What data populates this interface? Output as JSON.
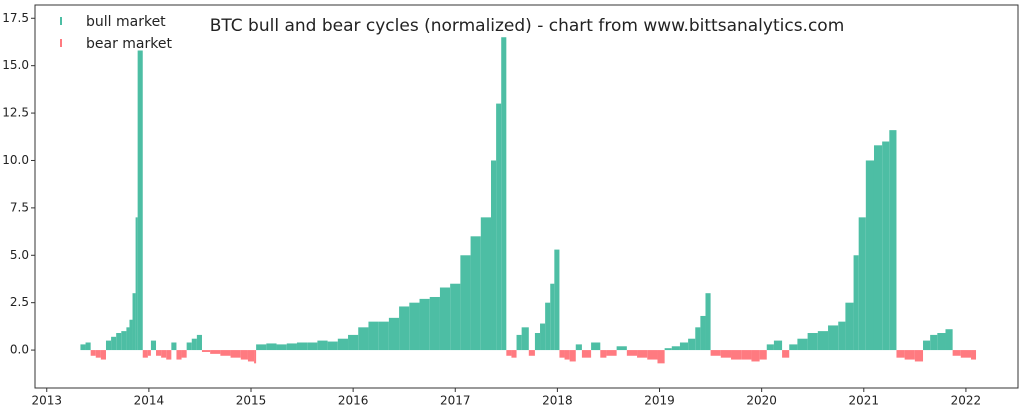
{
  "chart_data": {
    "type": "bar",
    "title": "BTC bull and bear cycles (normalized)  - chart from www.bittsanalytics.com",
    "legend": "upper left",
    "xlim": [
      2012.885,
      2022.51
    ],
    "xticks": [
      2013,
      2014,
      2015,
      2016,
      2017,
      2018,
      2019,
      2020,
      2021,
      2022
    ],
    "ylim": [
      -2.0,
      18.2
    ],
    "yticks": [
      {
        "value": 0,
        "label": "0.0"
      },
      2.5,
      {
        "value": 5,
        "label": "5.0"
      },
      7.5,
      {
        "value": 10,
        "label": "10.0"
      },
      12.5,
      {
        "value": 15,
        "label": "15.0"
      },
      17.5
    ],
    "series": [
      {
        "name": "bull market",
        "color": "#4dbea4",
        "x": [
          2013.33,
          2013.38,
          2013.58,
          2013.63,
          2013.68,
          2013.73,
          2013.78,
          2013.81,
          2013.84,
          2013.87,
          2013.89,
          2014.02,
          2014.22,
          2014.37,
          2014.42,
          2014.47,
          2015.05,
          2015.15,
          2015.25,
          2015.35,
          2015.45,
          2015.55,
          2015.65,
          2015.75,
          2015.85,
          2015.95,
          2016.05,
          2016.15,
          2016.25,
          2016.35,
          2016.45,
          2016.55,
          2016.65,
          2016.75,
          2016.85,
          2016.95,
          2017.05,
          2017.15,
          2017.25,
          2017.35,
          2017.4,
          2017.45,
          2017.6,
          2017.65,
          2017.78,
          2017.83,
          2017.88,
          2017.93,
          2017.97,
          2018.18,
          2018.33,
          2018.58,
          2019.05,
          2019.12,
          2019.2,
          2019.28,
          2019.35,
          2019.4,
          2019.45,
          2020.05,
          2020.12,
          2020.27,
          2020.35,
          2020.45,
          2020.55,
          2020.65,
          2020.75,
          2020.82,
          2020.9,
          2020.95,
          2021.02,
          2021.1,
          2021.18,
          2021.25,
          2021.58,
          2021.65,
          2021.72,
          2021.8
        ],
        "values": [
          0.3,
          0.4,
          0.5,
          0.7,
          0.9,
          1.0,
          1.2,
          1.6,
          3.0,
          7.0,
          15.8,
          0.5,
          0.4,
          0.4,
          0.6,
          0.8,
          0.3,
          0.35,
          0.3,
          0.35,
          0.4,
          0.4,
          0.5,
          0.45,
          0.6,
          0.8,
          1.2,
          1.5,
          1.5,
          1.7,
          2.3,
          2.5,
          2.7,
          2.8,
          3.3,
          3.5,
          5.0,
          6.0,
          7.0,
          10.0,
          13.0,
          16.5,
          0.8,
          1.2,
          0.9,
          1.4,
          2.5,
          3.5,
          5.3,
          0.3,
          0.4,
          0.2,
          0.1,
          0.2,
          0.4,
          0.6,
          1.2,
          1.8,
          3.0,
          0.3,
          0.5,
          0.3,
          0.6,
          0.9,
          1.0,
          1.3,
          1.5,
          2.5,
          5.0,
          7.0,
          10.0,
          10.8,
          11.0,
          11.6,
          0.5,
          0.8,
          0.9,
          1.1
        ]
      },
      {
        "name": "bear market",
        "color": "#ff7a80",
        "x": [
          2013.43,
          2013.48,
          2013.53,
          2013.94,
          2013.99,
          2014.07,
          2014.12,
          2014.17,
          2014.27,
          2014.32,
          2014.52,
          2014.6,
          2014.7,
          2014.8,
          2014.9,
          2014.97,
          2015.03,
          2017.5,
          2017.55,
          2017.72,
          2018.02,
          2018.07,
          2018.12,
          2018.24,
          2018.42,
          2018.48,
          2018.68,
          2018.78,
          2018.88,
          2018.98,
          2019.5,
          2019.6,
          2019.7,
          2019.8,
          2019.9,
          2019.98,
          2020.2,
          2021.32,
          2021.4,
          2021.5,
          2021.87,
          2021.95,
          2022.05
        ],
        "values": [
          -0.3,
          -0.4,
          -0.5,
          -0.4,
          -0.3,
          -0.3,
          -0.4,
          -0.5,
          -0.5,
          -0.4,
          -0.1,
          -0.2,
          -0.3,
          -0.4,
          -0.5,
          -0.6,
          -0.7,
          -0.3,
          -0.4,
          -0.3,
          -0.4,
          -0.5,
          -0.6,
          -0.4,
          -0.4,
          -0.3,
          -0.3,
          -0.4,
          -0.5,
          -0.7,
          -0.3,
          -0.4,
          -0.5,
          -0.5,
          -0.6,
          -0.5,
          -0.4,
          -0.4,
          -0.5,
          -0.6,
          -0.3,
          -0.4,
          -0.5
        ]
      }
    ]
  }
}
